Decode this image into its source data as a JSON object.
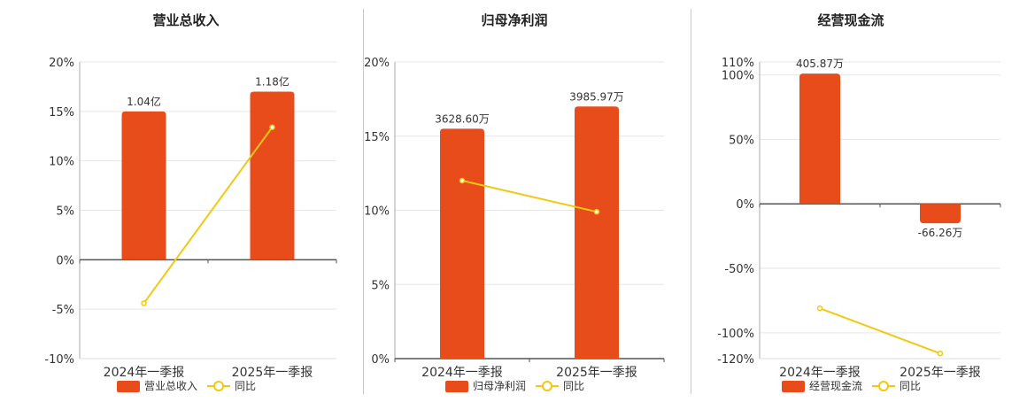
{
  "colors": {
    "bar": "#e84c1a",
    "line": "#f2c811",
    "grid": "#e6e6e6",
    "axis": "#555555",
    "text": "#333333"
  },
  "chart_data": [
    {
      "type": "bar",
      "title": "营业总收入",
      "categories": [
        "2024年一季报",
        "2025年一季报"
      ],
      "series": [
        {
          "name": "营业总收入",
          "kind": "bar",
          "values": [
            15.0,
            17.0
          ],
          "labels": [
            "1.04亿",
            "1.18亿"
          ]
        },
        {
          "name": "同比",
          "kind": "line",
          "values": [
            -4.4,
            13.4
          ]
        }
      ],
      "ylim": [
        -10,
        20
      ],
      "yticks": [
        -10,
        -5,
        0,
        5,
        10,
        15,
        20
      ],
      "ytick_labels": [
        "-10%",
        "-5%",
        "0%",
        "5%",
        "10%",
        "15%",
        "20%"
      ],
      "xlabel": "",
      "ylabel": "",
      "grid": true,
      "legend": "bottom-center"
    },
    {
      "type": "bar",
      "title": "归母净利润",
      "categories": [
        "2024年一季报",
        "2025年一季报"
      ],
      "series": [
        {
          "name": "归母净利润",
          "kind": "bar",
          "values": [
            15.5,
            17.0
          ],
          "labels": [
            "3628.60万",
            "3985.97万"
          ]
        },
        {
          "name": "同比",
          "kind": "line",
          "values": [
            12.0,
            9.9
          ]
        }
      ],
      "ylim": [
        0,
        20
      ],
      "yticks": [
        0,
        5,
        10,
        15,
        20
      ],
      "ytick_labels": [
        "0%",
        "5%",
        "10%",
        "15%",
        "20%"
      ],
      "xlabel": "",
      "ylabel": "",
      "grid": true,
      "legend": "bottom-center"
    },
    {
      "type": "bar",
      "title": "经营现金流",
      "categories": [
        "2024年一季报",
        "2025年一季报"
      ],
      "series": [
        {
          "name": "经营现金流",
          "kind": "bar",
          "values": [
            101,
            -15
          ],
          "labels": [
            "405.87万",
            "-66.26万"
          ]
        },
        {
          "name": "同比",
          "kind": "line",
          "values": [
            -81,
            -116
          ]
        }
      ],
      "ylim": [
        -120,
        110
      ],
      "yticks": [
        -120,
        -100,
        -50,
        0,
        50,
        100,
        110
      ],
      "ytick_labels": [
        "-120%",
        "-100%",
        "-50%",
        "0%",
        "50%",
        "100%",
        "110%"
      ],
      "xlabel": "",
      "ylabel": "",
      "grid": true,
      "legend": "bottom-center"
    }
  ]
}
